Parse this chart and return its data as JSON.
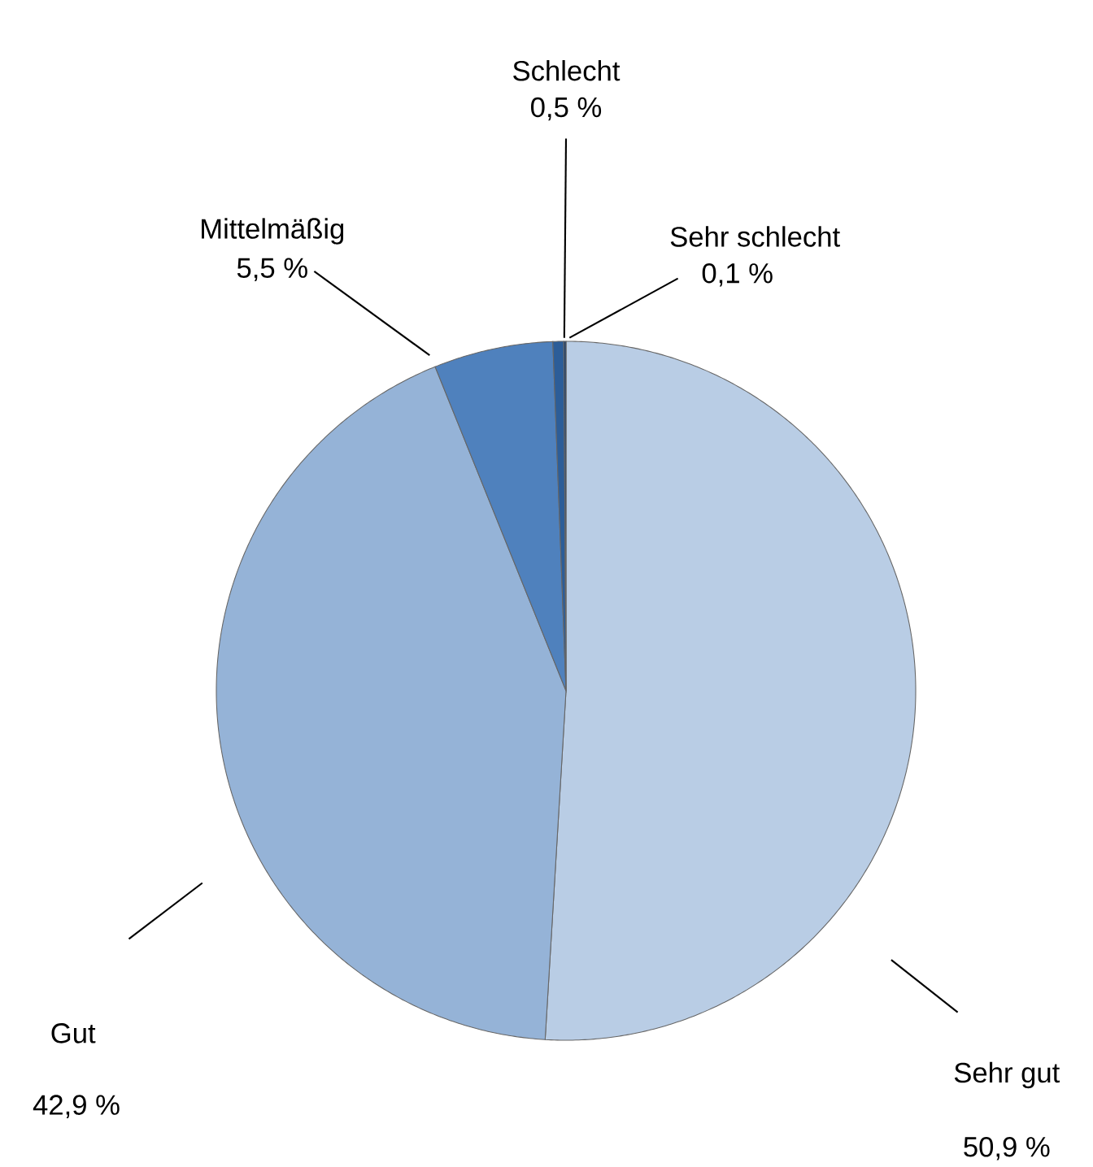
{
  "chart_data": {
    "type": "pie",
    "categories": [
      "Sehr gut",
      "Gut",
      "Mittelmäßig",
      "Schlecht",
      "Sehr schlecht"
    ],
    "values": [
      50.9,
      42.9,
      5.5,
      0.5,
      0.1
    ],
    "value_labels": [
      "50,9 %",
      "42,9 %",
      "5,5 %",
      "0,5 %",
      "0,1 %"
    ],
    "colors": [
      "#b9cde5",
      "#95b3d7",
      "#4f81bd",
      "#2c5d98",
      "#1f3f6a"
    ]
  }
}
